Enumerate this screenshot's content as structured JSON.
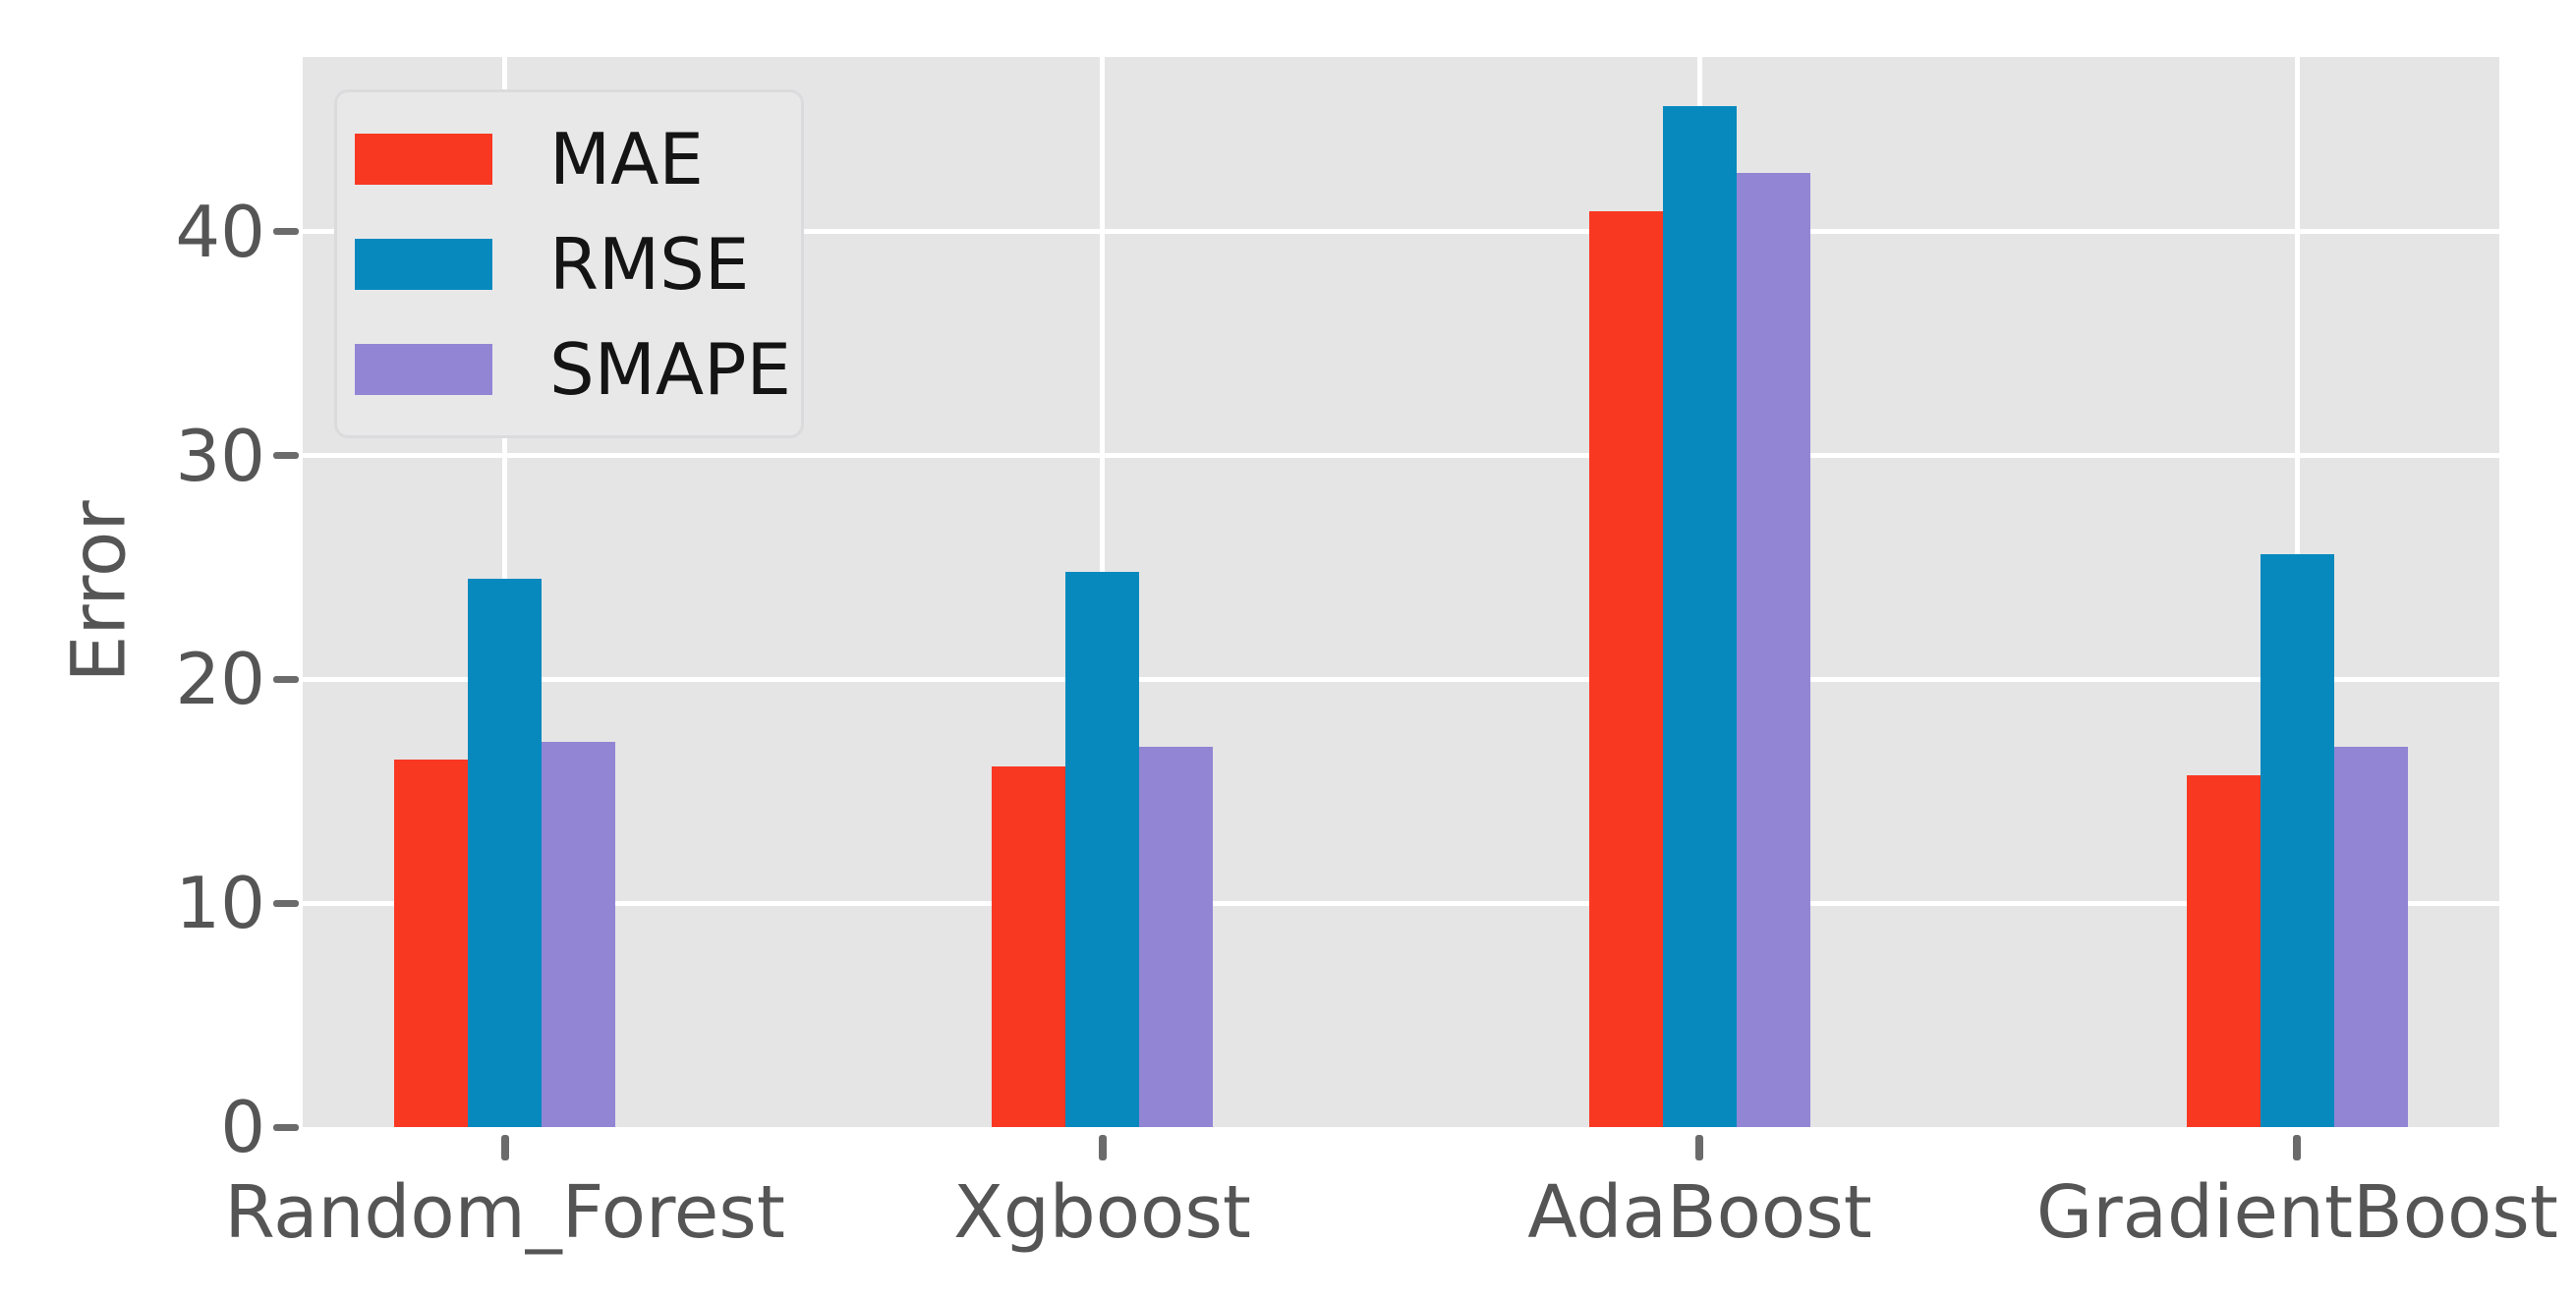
{
  "chart_data": {
    "type": "bar",
    "title": "",
    "xlabel": "",
    "ylabel": "Error",
    "categories": [
      "Random_Forest",
      "Xgboost",
      "AdaBoost",
      "GradientBoost"
    ],
    "series": [
      {
        "name": "MAE",
        "color": "#f93822",
        "values": [
          16.4,
          16.1,
          40.9,
          15.7
        ]
      },
      {
        "name": "RMSE",
        "color": "#0789be",
        "values": [
          24.5,
          24.8,
          45.6,
          25.6
        ]
      },
      {
        "name": "SMAPE",
        "color": "#9285d4",
        "values": [
          17.2,
          17.0,
          42.6,
          17.0
        ]
      }
    ],
    "yticks": [
      0,
      10,
      20,
      30,
      40
    ],
    "ylim": [
      0,
      47.8
    ],
    "grid": true,
    "legend_position": "upper-left",
    "plot_background": "#e5e5e5",
    "gridline_color": "#ffffff",
    "legend_background": "#e8e8e9",
    "legend_border_color": "#dbdbdd",
    "text_color": "#555555"
  }
}
